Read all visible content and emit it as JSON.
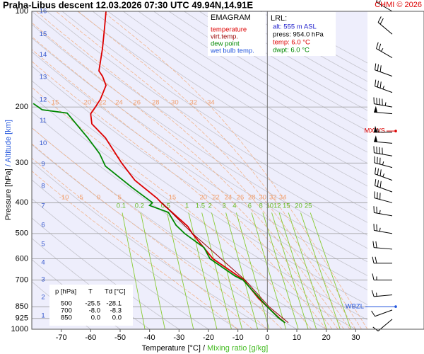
{
  "chart_data": {
    "type": "emagram",
    "title": "Praha-Libus   descent   12.03.2026 07:30 UTC  49.94N,14.91E",
    "credit": "CHMI © 2026",
    "y_label_pressure": "Pressure [hPa]",
    "y_label_separator": "/",
    "y_label_altitude": "Altitude [km]",
    "x_label_temperature": "Temperature [°C]",
    "x_label_separator": "/",
    "x_label_mixing": "Mixing ratio [g/kg]",
    "xlim": [
      -80,
      34
    ],
    "xticks": [
      -70,
      -60,
      -50,
      -40,
      -30,
      -20,
      -10,
      0,
      10,
      20,
      30
    ],
    "ylim": [
      1000,
      100
    ],
    "log_y": true,
    "yticks": [
      100,
      200,
      300,
      400,
      500,
      600,
      700,
      850,
      925,
      1000
    ],
    "grid": true,
    "altitude_ticks": [
      {
        "km": 1,
        "p": 907
      },
      {
        "km": 2,
        "p": 794
      },
      {
        "km": 3,
        "p": 698
      },
      {
        "km": 4,
        "p": 617
      },
      {
        "km": 5,
        "p": 540
      },
      {
        "km": 6,
        "p": 471
      },
      {
        "km": 7,
        "p": 410
      },
      {
        "km": 8,
        "p": 355
      },
      {
        "km": 9,
        "p": 303
      },
      {
        "km": 10,
        "p": 260
      },
      {
        "km": 11,
        "p": 221
      },
      {
        "km": 12,
        "p": 190
      },
      {
        "km": 13,
        "p": 161
      },
      {
        "km": 14,
        "p": 137
      },
      {
        "km": 15,
        "p": 118
      },
      {
        "km": 16,
        "p": 100
      }
    ],
    "mixing_ratios": [
      0.1,
      0.2,
      0.5,
      1,
      1.5,
      2,
      3,
      4,
      6,
      8,
      10,
      12,
      15,
      20,
      25
    ],
    "wet_bulb_adiabats_upper": [
      15,
      20,
      22,
      24,
      26,
      28,
      30,
      32,
      34
    ],
    "wet_bulb_adiabats_lower": [
      -10,
      -5,
      0,
      5,
      15,
      20,
      22,
      24,
      26,
      28,
      30,
      32,
      34
    ],
    "legend_title": "EMAGRAM",
    "series": [
      {
        "name": "temperature",
        "color": "#dd0000",
        "pressure": [
          954,
          925,
          850,
          800,
          700,
          600,
          500,
          475,
          400,
          387,
          340,
          300,
          250,
          226,
          210,
          200,
          189,
          171,
          160,
          154,
          131,
          113,
          100
        ],
        "values": [
          6.0,
          4.2,
          0.0,
          -3.0,
          -8.0,
          -18.5,
          -25.5,
          -27,
          -36,
          -37.5,
          -45,
          -49.5,
          -55,
          -59.6,
          -60,
          -58.4,
          -56.7,
          -54.8,
          -56,
          -57.2,
          -56,
          -55.3,
          -54.8
        ]
      },
      {
        "name": "virt.temp.",
        "color": "#990000",
        "pressure": [
          954,
          850,
          700,
          500,
          400
        ],
        "values": [
          7.1,
          0.6,
          -7.6,
          -25.4,
          -35.9
        ]
      },
      {
        "name": "dew point",
        "color": "#008800",
        "pressure": [
          954,
          925,
          850,
          700,
          680,
          600,
          554,
          500,
          471,
          429,
          408,
          400,
          358,
          307,
          280,
          250,
          209,
          204,
          195
        ],
        "values": [
          6.0,
          4.0,
          0.0,
          -8.3,
          -11,
          -19.5,
          -21.5,
          -28.1,
          -31,
          -33.6,
          -40,
          -39,
          -46,
          -55,
          -57,
          -61,
          -68,
          -76.5,
          -79.5
        ]
      },
      {
        "name": "wet bulb temp.",
        "color": "#2255dd",
        "pressure": [],
        "values": []
      }
    ],
    "lrl": {
      "title": "LRL:",
      "alt": "alt: 555 m ASL",
      "press": "press: 954.0 hPa",
      "temp": "temp: 6.0 °C",
      "dwpt": "dwpt: 6.0 °C"
    },
    "table": {
      "header": [
        "p [hPa]",
        "T",
        "Td [°C]"
      ],
      "rows": [
        [
          "500",
          "-25.5",
          "-28.1"
        ],
        [
          "700",
          "-8.0",
          "-8.3"
        ],
        [
          "850",
          "0.0",
          "0.0"
        ]
      ]
    },
    "markers": [
      {
        "label": "MXWS",
        "p": 238,
        "color": "#dd0000"
      },
      {
        "label": "WBZL",
        "p": 849,
        "color": "#2255dd"
      }
    ],
    "wind": {
      "pressure": [
        100,
        118,
        140,
        160,
        180,
        200,
        210,
        240,
        260,
        285,
        310,
        340,
        370,
        400,
        440,
        500,
        560,
        620,
        700,
        780,
        870,
        930
      ],
      "direction": [
        300,
        310,
        300,
        290,
        290,
        280,
        275,
        270,
        275,
        280,
        285,
        290,
        290,
        285,
        280,
        280,
        275,
        270,
        270,
        265,
        250,
        230
      ],
      "speed": [
        15,
        20,
        25,
        30,
        35,
        45,
        50,
        55,
        50,
        40,
        35,
        35,
        30,
        30,
        25,
        25,
        20,
        20,
        15,
        15,
        10,
        10
      ]
    }
  }
}
